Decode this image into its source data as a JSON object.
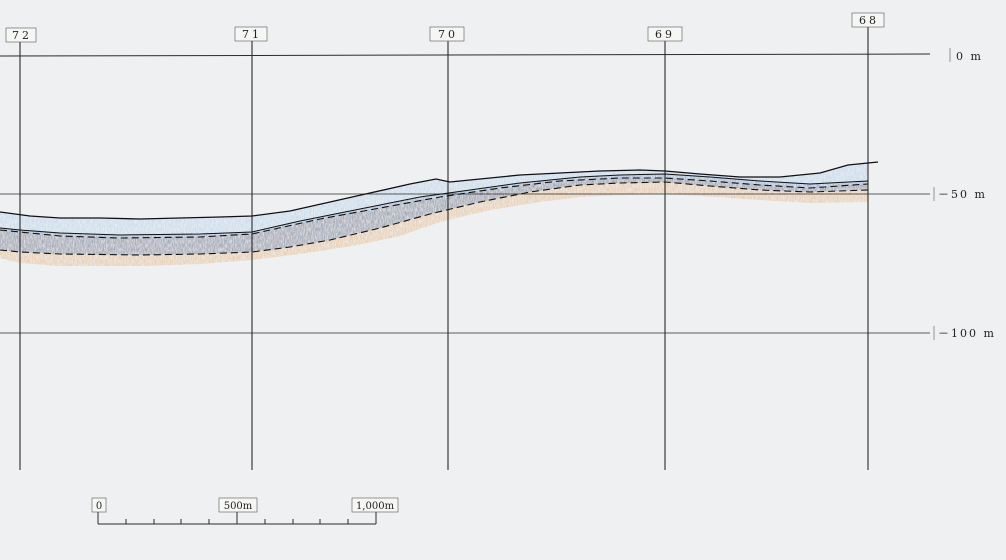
{
  "stations": [
    "72",
    "71",
    "70",
    "69",
    "68"
  ],
  "depth_labels": [
    "0 m",
    "－50 m",
    "－100 m"
  ],
  "scale_bar": {
    "labels": [
      "0",
      "500m",
      "1,000m"
    ]
  },
  "colors": {
    "background": "#eef0f2",
    "grid": "#2b2b2b",
    "upper_layer": "#b9d2ea",
    "middle_layer": "#6f93c6",
    "lower_layer": "#e6b27e"
  }
}
